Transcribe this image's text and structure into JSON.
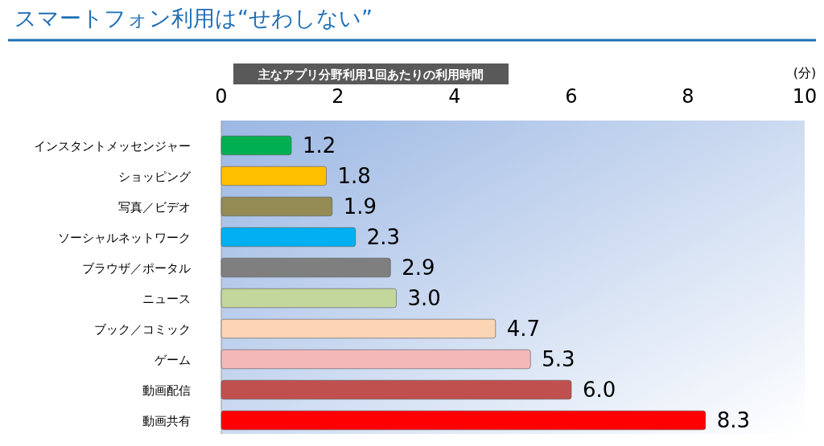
{
  "chart_data": {
    "type": "bar",
    "orientation": "horizontal",
    "title": "スマートフォン利用は“せわしない”",
    "subtitle": "主なアプリ分野利用1回あたりの利用時間",
    "xlabel": "(分)",
    "categories": [
      "インスタントメッセンジャー",
      "ショッピング",
      "写真／ビデオ",
      "ソーシャルネットワーク",
      "ブラウザ／ポータル",
      "ニュース",
      "ブック／コミック",
      "ゲーム",
      "動画配信",
      "動画共有"
    ],
    "values": [
      1.2,
      1.8,
      1.9,
      2.3,
      2.9,
      3.0,
      4.7,
      5.3,
      6.0,
      8.3
    ],
    "value_labels": [
      "1.2",
      "1.8",
      "1.9",
      "2.3",
      "2.9",
      "3.0",
      "4.7",
      "5.3",
      "6.0",
      "8.3"
    ],
    "colors": [
      "#00b050",
      "#ffc000",
      "#948a54",
      "#00b0f0",
      "#7f7f7f",
      "#c3d69b",
      "#fcd5b5",
      "#f4b8b8",
      "#c0504d",
      "#ff0000"
    ],
    "xlim": [
      0,
      10
    ],
    "xticks": [
      0,
      2,
      4,
      6,
      8,
      10
    ],
    "grid": false
  }
}
